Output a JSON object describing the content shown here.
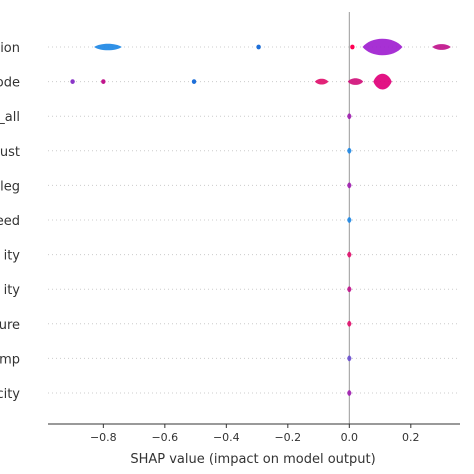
{
  "chart_data": {
    "type": "violin",
    "xlabel": "SHAP value (impact on model output)",
    "xticks": [
      -0.8,
      -0.6,
      -0.4,
      -0.2,
      0.0,
      0.2
    ],
    "xtick_labels": [
      "−0.8",
      "−0.6",
      "−0.4",
      "−0.2",
      "0.0",
      "0.2"
    ],
    "xlim": [
      -0.98,
      0.36
    ],
    "features": [
      {
        "label": "ion",
        "violins": [
          {
            "center": -0.785,
            "extent": 0.045,
            "height": 0.4,
            "color": "#1e88e5"
          },
          {
            "center": 0.108,
            "extent": 0.065,
            "height": 1.0,
            "color": "#a020d0"
          },
          {
            "center": 0.3,
            "extent": 0.03,
            "height": 0.35,
            "color": "#c0148c"
          }
        ],
        "points": [
          {
            "x": -0.295,
            "color": "#1e6fd9"
          },
          {
            "x": 0.01,
            "color": "#ff0052"
          }
        ]
      },
      {
        "label": "ode",
        "violins": [
          {
            "center": -0.09,
            "extent": 0.022,
            "height": 0.35,
            "color": "#e0106c"
          },
          {
            "center": 0.02,
            "extent": 0.025,
            "height": 0.4,
            "color": "#d0107a"
          },
          {
            "center": 0.108,
            "extent": 0.03,
            "height": 0.95,
            "color": "#e0007a"
          }
        ],
        "points": [
          {
            "x": -0.9,
            "color": "#8a35c8"
          },
          {
            "x": -0.8,
            "color": "#c0148c"
          },
          {
            "x": -0.505,
            "color": "#1e6fd9"
          }
        ]
      },
      {
        "label": "_all",
        "violins": [
          {
            "center": 0.0,
            "extent": 0.004,
            "height": 0.35,
            "color": "#a020b0"
          }
        ],
        "points": []
      },
      {
        "label": "ust",
        "violins": [
          {
            "center": 0.0,
            "extent": 0.004,
            "height": 0.35,
            "color": "#1e88e5"
          }
        ],
        "points": []
      },
      {
        "label": "leg",
        "violins": [
          {
            "center": 0.0,
            "extent": 0.004,
            "height": 0.35,
            "color": "#a020b0"
          }
        ],
        "points": []
      },
      {
        "label": "eed",
        "violins": [
          {
            "center": 0.0,
            "extent": 0.004,
            "height": 0.35,
            "color": "#1e88e5"
          }
        ],
        "points": []
      },
      {
        "label": "ity",
        "violins": [
          {
            "center": 0.0,
            "extent": 0.004,
            "height": 0.35,
            "color": "#e0106c"
          }
        ],
        "points": []
      },
      {
        "label": "ity",
        "violins": [
          {
            "center": 0.0,
            "extent": 0.004,
            "height": 0.35,
            "color": "#c0148c"
          }
        ],
        "points": []
      },
      {
        "label": "ure",
        "violins": [
          {
            "center": 0.0,
            "extent": 0.004,
            "height": 0.35,
            "color": "#e0106c"
          }
        ],
        "points": []
      },
      {
        "label": "mp",
        "violins": [
          {
            "center": 0.0,
            "extent": 0.004,
            "height": 0.35,
            "color": "#6a4fd0"
          }
        ],
        "points": []
      },
      {
        "label": "city",
        "violins": [
          {
            "center": 0.0,
            "extent": 0.004,
            "height": 0.35,
            "color": "#a020b0"
          }
        ],
        "points": []
      }
    ]
  }
}
